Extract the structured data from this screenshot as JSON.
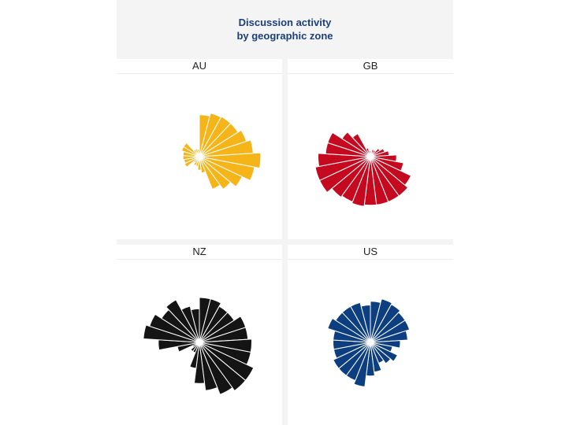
{
  "chart_data": {
    "type": "polar-bar",
    "title": [
      "Discussion activity",
      "by geographic zone"
    ],
    "panels": [
      {
        "name": "AU",
        "color": "#f5b417",
        "values": [
          56,
          60,
          61,
          61,
          66,
          72,
          82,
          75,
          63,
          54,
          47,
          22,
          18,
          13,
          13,
          10,
          22,
          21,
          22,
          22,
          25,
          25,
          11,
          11,
          10
        ]
      },
      {
        "name": "GB",
        "color": "#c5091f",
        "values": [
          5,
          10,
          10,
          15,
          20,
          25,
          35,
          45,
          60,
          65,
          65,
          65,
          65,
          67,
          65,
          67,
          75,
          75,
          70,
          60,
          60,
          45,
          35,
          12,
          8
        ]
      },
      {
        "name": "NZ",
        "color": "#141414",
        "values": [
          60,
          60,
          55,
          55,
          65,
          65,
          70,
          70,
          80,
          80,
          75,
          65,
          55,
          35,
          15,
          15,
          10,
          30,
          55,
          75,
          70,
          60,
          65,
          50,
          45
        ]
      },
      {
        "name": "US",
        "color": "#0c3e80",
        "values": [
          55,
          60,
          58,
          55,
          55,
          50,
          40,
          30,
          40,
          35,
          30,
          40,
          45,
          60,
          55,
          55,
          55,
          50,
          50,
          50,
          60,
          55,
          55,
          55,
          50
        ]
      }
    ]
  }
}
